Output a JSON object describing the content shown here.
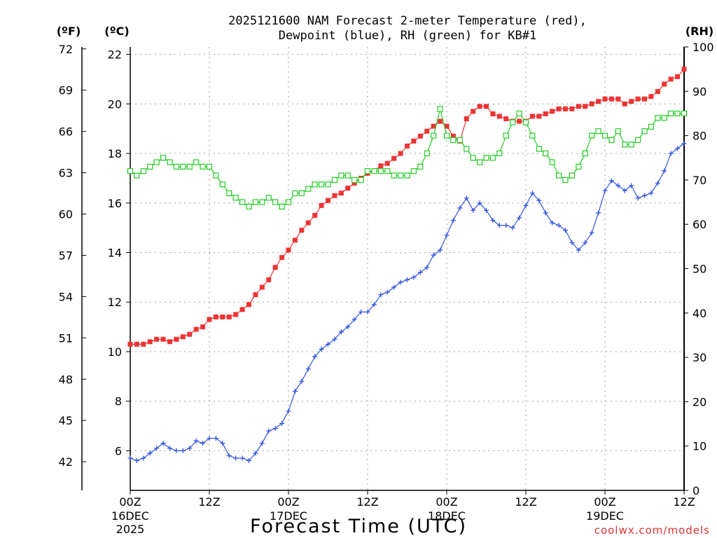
{
  "chart_data": {
    "type": "line",
    "title_line1": "2025121600 NAM Forecast 2-meter Temperature (red),",
    "title_line2": "Dewpoint (blue), RH (green) for KB#1",
    "xlabel": "Forecast Time (UTC)",
    "watermark": "coolwx.com/models",
    "unit_f": "(ºF)",
    "unit_c": "(ºC)",
    "unit_rh": "(RH)",
    "x_range_hours": [
      0,
      84
    ],
    "x_ticks": [
      {
        "hour": 0,
        "label": "00Z",
        "sub": "16DEC",
        "sub2": "2025"
      },
      {
        "hour": 12,
        "label": "12Z",
        "sub": "",
        "sub2": ""
      },
      {
        "hour": 24,
        "label": "00Z",
        "sub": "17DEC",
        "sub2": ""
      },
      {
        "hour": 36,
        "label": "12Z",
        "sub": "",
        "sub2": ""
      },
      {
        "hour": 48,
        "label": "00Z",
        "sub": "18DEC",
        "sub2": ""
      },
      {
        "hour": 60,
        "label": "12Z",
        "sub": "",
        "sub2": ""
      },
      {
        "hour": 72,
        "label": "00Z",
        "sub": "19DEC",
        "sub2": ""
      },
      {
        "hour": 84,
        "label": "12Z",
        "sub": "",
        "sub2": ""
      }
    ],
    "c_range": [
      4.4,
      22.3
    ],
    "c_ticks": [
      "6",
      "8",
      "10",
      "12",
      "14",
      "16",
      "18",
      "20",
      "22"
    ],
    "f_ticks": [
      "42",
      "45",
      "48",
      "51",
      "54",
      "57",
      "60",
      "63",
      "66",
      "69",
      "72"
    ],
    "rh_range": [
      0,
      100
    ],
    "rh_ticks": [
      "0",
      "10",
      "20",
      "30",
      "40",
      "50",
      "60",
      "70",
      "80",
      "90",
      "100"
    ],
    "series": [
      {
        "name": "Temperature",
        "units": "C",
        "color": "#ee3333",
        "marker": "filled-square",
        "values": [
          10.3,
          10.3,
          10.3,
          10.4,
          10.5,
          10.5,
          10.4,
          10.5,
          10.6,
          10.7,
          10.9,
          11.0,
          11.3,
          11.4,
          11.4,
          11.4,
          11.5,
          11.7,
          11.9,
          12.3,
          12.6,
          12.9,
          13.4,
          13.8,
          14.1,
          14.5,
          14.9,
          15.2,
          15.5,
          15.9,
          16.1,
          16.3,
          16.4,
          16.6,
          16.8,
          17.0,
          17.2,
          17.3,
          17.5,
          17.6,
          17.8,
          18.0,
          18.3,
          18.5,
          18.7,
          18.9,
          19.1,
          19.3,
          19.1,
          18.7,
          18.5,
          19.4,
          19.7,
          19.9,
          19.9,
          19.6,
          19.5,
          19.4,
          19.3,
          19.3,
          19.3,
          19.5,
          19.5,
          19.6,
          19.7,
          19.8,
          19.8,
          19.8,
          19.9,
          19.9,
          20.0,
          20.1,
          20.2,
          20.2,
          20.2,
          20.0,
          20.1,
          20.2,
          20.2,
          20.3,
          20.5,
          20.8,
          21.0,
          21.1,
          21.4
        ]
      },
      {
        "name": "Dewpoint",
        "units": "C",
        "color": "#3355dd",
        "marker": "plus",
        "values": [
          5.7,
          5.6,
          5.7,
          5.9,
          6.1,
          6.3,
          6.1,
          6.0,
          6.0,
          6.1,
          6.4,
          6.3,
          6.5,
          6.5,
          6.3,
          5.8,
          5.7,
          5.7,
          5.6,
          5.9,
          6.3,
          6.8,
          6.9,
          7.1,
          7.6,
          8.4,
          8.8,
          9.3,
          9.8,
          10.1,
          10.3,
          10.5,
          10.8,
          11.0,
          11.3,
          11.6,
          11.6,
          11.9,
          12.3,
          12.4,
          12.6,
          12.8,
          12.9,
          13.0,
          13.2,
          13.4,
          13.9,
          14.1,
          14.7,
          15.3,
          15.8,
          16.2,
          15.7,
          16.0,
          15.7,
          15.3,
          15.1,
          15.1,
          15.0,
          15.4,
          15.9,
          16.4,
          16.1,
          15.6,
          15.2,
          15.1,
          14.9,
          14.4,
          14.1,
          14.4,
          14.8,
          15.6,
          16.5,
          16.9,
          16.7,
          16.5,
          16.7,
          16.2,
          16.3,
          16.4,
          16.8,
          17.3,
          18.0,
          18.2,
          18.4
        ]
      },
      {
        "name": "RH",
        "units": "%",
        "color": "#22cc22",
        "marker": "open-square",
        "values": [
          72,
          71,
          72,
          73,
          74,
          75,
          74,
          73,
          73,
          73,
          74,
          73,
          73,
          71,
          69,
          67,
          66,
          65,
          64,
          65,
          65,
          66,
          65,
          64,
          65,
          67,
          67,
          68,
          69,
          69,
          69,
          70,
          71,
          71,
          70,
          70,
          72,
          72,
          72,
          72,
          71,
          71,
          71,
          72,
          73,
          76,
          80,
          86,
          80,
          79,
          79,
          77,
          75,
          74,
          75,
          75,
          76,
          80,
          83,
          85,
          83,
          80,
          77,
          76,
          74,
          71,
          70,
          71,
          73,
          76,
          80,
          81,
          80,
          79,
          81,
          78,
          78,
          79,
          81,
          82,
          84,
          84,
          85,
          85,
          85
        ]
      }
    ]
  }
}
